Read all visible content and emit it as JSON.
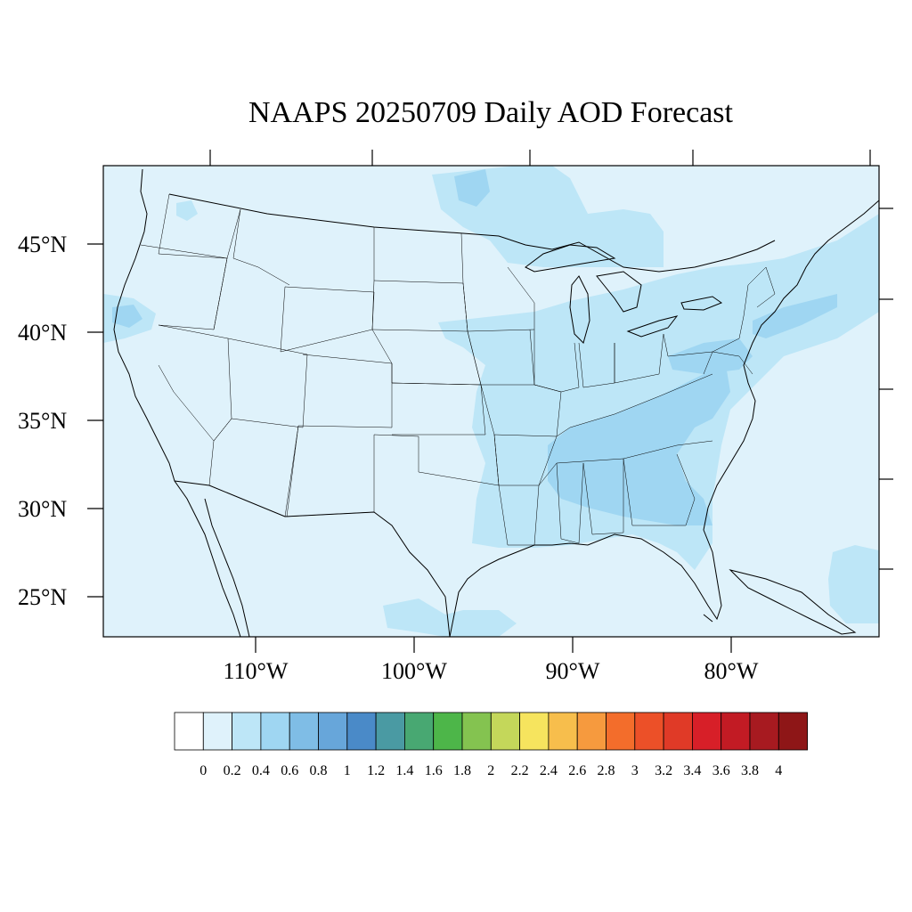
{
  "title": "NAAPS 20250709 Daily AOD Forecast",
  "map": {
    "region": "Continental United States",
    "variable": "Aerosol Optical Depth",
    "background_level_color": "#dff2fb",
    "lat_labels": [
      "45°N",
      "40°N",
      "35°N",
      "30°N",
      "25°N"
    ],
    "lat_values": [
      45,
      40,
      35,
      30,
      25
    ],
    "lon_labels": [
      "110°W",
      "100°W",
      "90°W",
      "80°W"
    ],
    "lon_values": [
      -110,
      -100,
      -90,
      -80
    ],
    "plumes": [
      {
        "area": "Southeast US (AL, GA, TN, SC)",
        "level": "0.4-0.6"
      },
      {
        "area": "Ohio Valley / Mid-Atlantic",
        "level": "0.2-0.4"
      },
      {
        "area": "Atlantic off Northeast",
        "level": "0.2-0.4"
      },
      {
        "area": "Southern Manitoba / Ontario",
        "level": "0.4-0.6"
      },
      {
        "area": "Northern California coast",
        "level": "0.4-0.6"
      },
      {
        "area": "Caribbean north of Cuba",
        "level": "0.2-0.4"
      }
    ]
  },
  "colorbar": {
    "labels": [
      "0",
      "0.2",
      "0.4",
      "0.6",
      "0.8",
      "1",
      "1.2",
      "1.4",
      "1.6",
      "1.8",
      "2",
      "2.2",
      "2.4",
      "2.6",
      "2.8",
      "3",
      "3.2",
      "3.4",
      "3.6",
      "3.8",
      "4"
    ],
    "colors": [
      "#ffffff",
      "#dff2fb",
      "#bde6f7",
      "#9fd6f2",
      "#7fbde6",
      "#67a6da",
      "#4a8ac8",
      "#4a9aa3",
      "#48a872",
      "#4db649",
      "#84c350",
      "#c4d75a",
      "#f6e45e",
      "#f7be4c",
      "#f69a3e",
      "#f36d2b",
      "#ec5028",
      "#e03a27",
      "#d71f28",
      "#c21b24",
      "#a71a20",
      "#8e1617"
    ]
  }
}
